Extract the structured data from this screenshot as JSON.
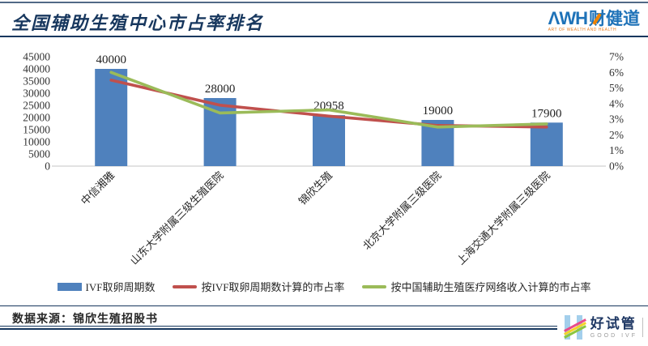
{
  "header": {
    "title": "全国辅助生殖中心市占率排名",
    "logo": {
      "latin": "ΛWH",
      "cn": "财健道",
      "tagline": "ART OF WEALTH AND HEALTH",
      "blue": "#1E72B8",
      "orange": "#F08300"
    }
  },
  "chart_data": {
    "type": "bar",
    "subtype": "bar-line combo, dual axis",
    "title": "全国辅助生殖中心市占率排名",
    "categories": [
      "中信湘雅",
      "山东大学附属三级生殖医院",
      "锦欣生殖",
      "北京大学附属三级医院",
      "上海交通大学附属三级医院"
    ],
    "series": [
      {
        "name": "IVF取卵周期数",
        "type": "bar",
        "axis": "left",
        "color": "#4F81BD",
        "values": [
          40000,
          28000,
          20958,
          19000,
          17900
        ],
        "data_labels": [
          "40000",
          "28000",
          "20958",
          "19000",
          "17900"
        ]
      },
      {
        "name": "按IVF取卵周期数计算的市占率",
        "type": "line",
        "axis": "right",
        "color": "#C0504D",
        "values": [
          5.5,
          3.9,
          3.2,
          2.6,
          2.5
        ],
        "unit": "%"
      },
      {
        "name": "按中国辅助生殖医疗网络收入计算的市占率",
        "type": "line",
        "axis": "right",
        "color": "#9BBB59",
        "values": [
          6.0,
          3.4,
          3.6,
          2.5,
          2.7
        ],
        "unit": "%"
      }
    ],
    "left_axis": {
      "min": 0,
      "max": 45000,
      "step": 5000,
      "ticks": [
        "0",
        "5000",
        "10000",
        "15000",
        "20000",
        "25000",
        "30000",
        "35000",
        "40000",
        "45000"
      ]
    },
    "right_axis": {
      "min": 0,
      "max": 7,
      "step": 1,
      "ticks": [
        "0%",
        "1%",
        "2%",
        "3%",
        "4%",
        "5%",
        "6%",
        "7%"
      ]
    },
    "grid": false,
    "legend_position": "bottom",
    "category_label_rotation": 45
  },
  "footer": {
    "source_label": "数据来源：锦欣生殖招股书",
    "logo": {
      "cn": "好试管",
      "en": "GOOD IVF"
    }
  },
  "colors": {
    "navy_rule": "#17375E",
    "bar_blue": "#4F81BD",
    "line_red": "#C0504D",
    "line_green": "#9BBB59",
    "axis_text": "#333333"
  }
}
